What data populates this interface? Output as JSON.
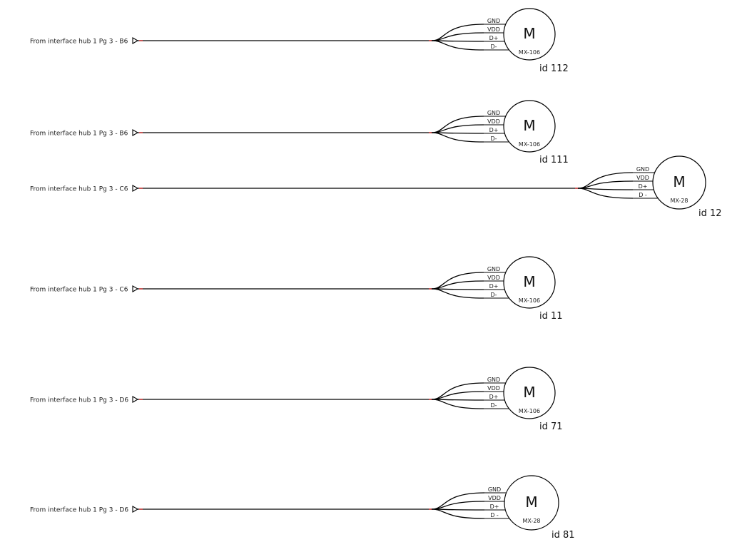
{
  "colors": {
    "wire": "#000000",
    "endpoint": "#cc2a2a",
    "background": "#ffffff"
  },
  "pins": [
    "GND",
    "VDD",
    "D+",
    "D-"
  ],
  "motor_symbol": "M",
  "motors": [
    {
      "source": "From interface hub 1 Pg 3 - B6",
      "model": "MX-106",
      "id": "id 112",
      "pins": [
        "GND",
        "VDD",
        "D+",
        "D-"
      ]
    },
    {
      "source": "From interface hub 1 Pg 3 - B6",
      "model": "MX-106",
      "id": "id 111",
      "pins": [
        "GND",
        "VDD",
        "D+",
        "D-"
      ]
    },
    {
      "source": "From interface hub 1 Pg 3 - C6",
      "model": "MX-28",
      "id": "id 12",
      "pins": [
        "GND",
        "VDD",
        "D+",
        "D -"
      ]
    },
    {
      "source": "From interface hub 1 Pg 3 - C6",
      "model": "MX-106",
      "id": "id 11",
      "pins": [
        "GND",
        "VDD",
        "D+",
        "D-"
      ]
    },
    {
      "source": "From interface hub 1 Pg 3 - D6",
      "model": "MX-106",
      "id": "id 71",
      "pins": [
        "GND",
        "VDD",
        "D+",
        "D-"
      ]
    },
    {
      "source": "From interface hub 1 Pg 3 - D6",
      "model": "MX-28",
      "id": "id 81",
      "pins": [
        "GND",
        "VDD",
        "D+",
        "D -"
      ]
    }
  ]
}
